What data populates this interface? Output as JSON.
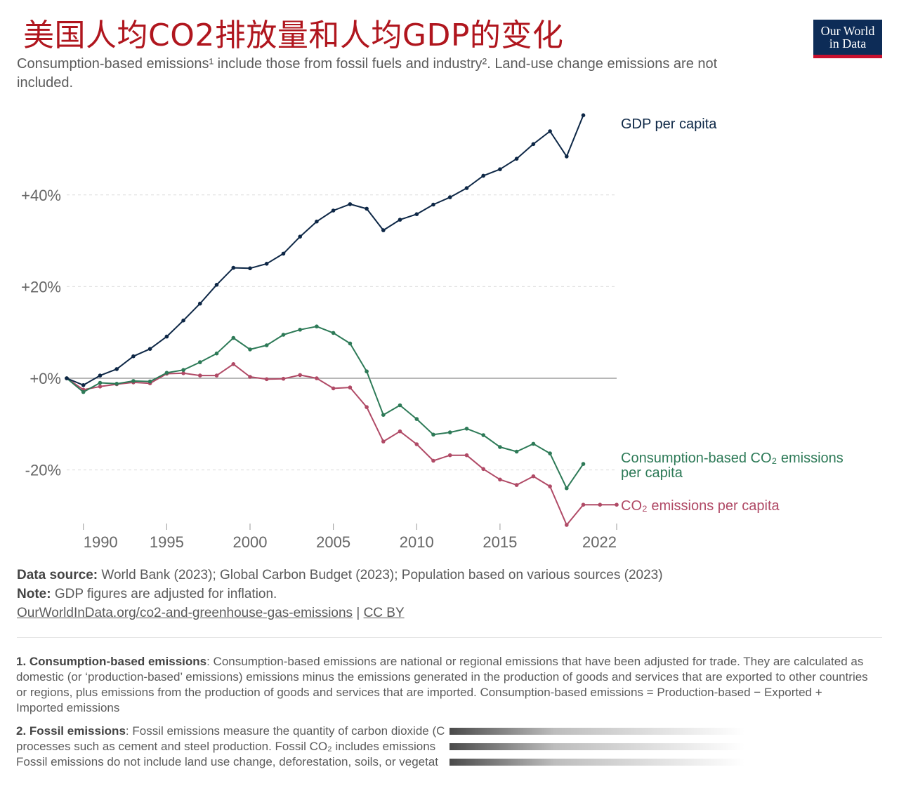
{
  "header": {
    "title": "美国人均CO2排放量和人均GDP的变化",
    "subtitle": "Consumption-based emissions¹ include those from fossil fuels and industry². Land-use change emissions are not included.",
    "logo_line1": "Our World",
    "logo_line2": "in Data"
  },
  "chart_data": {
    "type": "line",
    "x_ticks": [
      "1990",
      "1995",
      "2000",
      "2005",
      "2010",
      "2015",
      "2022"
    ],
    "y_ticks": [
      "+40%",
      "+20%",
      "+0%",
      "-20%"
    ],
    "ylim": [
      -33,
      58
    ],
    "xlim": [
      1989,
      2022
    ],
    "grid": true,
    "series": [
      {
        "name": "GDP per capita",
        "color": "#0d2746",
        "x": [
          1989,
          1990,
          1991,
          1992,
          1993,
          1994,
          1995,
          1996,
          1997,
          1998,
          1999,
          2000,
          2001,
          2002,
          2003,
          2004,
          2005,
          2006,
          2007,
          2008,
          2009,
          2010,
          2011,
          2012,
          2013,
          2014,
          2015,
          2016,
          2017,
          2018,
          2019,
          2020,
          2021
        ],
        "values": [
          0,
          -1.5,
          0.6,
          2.0,
          4.8,
          6.4,
          9.1,
          12.6,
          16.3,
          20.4,
          24.1,
          24.0,
          25.0,
          27.2,
          30.9,
          34.2,
          36.6,
          38.0,
          37.0,
          32.3,
          34.6,
          35.8,
          37.9,
          39.5,
          41.5,
          44.2,
          45.6,
          47.9,
          51.1,
          53.9,
          48.4,
          57.4,
          null
        ]
      },
      {
        "name": "Consumption-based CO₂ emissions per capita",
        "color": "#2d7a57",
        "x": [
          1989,
          1990,
          1991,
          1992,
          1993,
          1994,
          1995,
          1996,
          1997,
          1998,
          1999,
          2000,
          2001,
          2002,
          2003,
          2004,
          2005,
          2006,
          2007,
          2008,
          2009,
          2010,
          2011,
          2012,
          2013,
          2014,
          2015,
          2016,
          2017,
          2018,
          2019,
          2020,
          2021
        ],
        "values": [
          0,
          -3.0,
          -1.0,
          -1.2,
          -0.6,
          -0.7,
          1.2,
          1.8,
          3.5,
          5.4,
          8.8,
          6.3,
          7.2,
          9.5,
          10.6,
          11.3,
          9.9,
          7.6,
          1.5,
          -8.0,
          -5.9,
          -8.9,
          -12.3,
          -11.8,
          -11.0,
          -12.4,
          -15.0,
          -16.0,
          -14.3,
          -16.4,
          -24.0,
          -18.7,
          null
        ]
      },
      {
        "name": "CO₂ emissions per capita",
        "color": "#b04a66",
        "x": [
          1989,
          1990,
          1991,
          1992,
          1993,
          1994,
          1995,
          1996,
          1997,
          1998,
          1999,
          2000,
          2001,
          2002,
          2003,
          2004,
          2005,
          2006,
          2007,
          2008,
          2009,
          2010,
          2011,
          2012,
          2013,
          2014,
          2015,
          2016,
          2017,
          2018,
          2019,
          2020,
          2021,
          2022
        ],
        "values": [
          0,
          -2.5,
          -1.8,
          -1.3,
          -0.9,
          -1.1,
          1.0,
          1.1,
          0.6,
          0.6,
          3.1,
          0.3,
          -0.2,
          -0.1,
          0.7,
          0.0,
          -2.2,
          -2.0,
          -6.3,
          -13.8,
          -11.6,
          -14.4,
          -18.0,
          -16.8,
          -16.8,
          -19.8,
          -22.1,
          -23.3,
          -21.4,
          -23.6,
          -32.0,
          -27.6,
          -27.6,
          -27.6
        ]
      }
    ],
    "labels": {
      "gdp": "GDP per capita",
      "consumption_line1": "Consumption-based CO₂ emissions",
      "consumption_line2": "per capita",
      "co2": "CO₂ emissions per capita"
    }
  },
  "sources": {
    "data_source_label": "Data source:",
    "data_source_text": "World Bank (2023); Global Carbon Budget (2023); Population based on various sources (2023)",
    "note_label": "Note:",
    "note_text": "GDP figures are adjusted for inflation.",
    "link_text": "OurWorldInData.org/co2-and-greenhouse-gas-emissions",
    "separator": "|",
    "license_text": "CC BY"
  },
  "footnotes": {
    "fn1_label": "1. Consumption-based emissions",
    "fn1_text": ": Consumption-based emissions are national or regional emissions that have been adjusted for trade. They are calculated as domestic (or ‘production-based’ emissions) emissions minus the emissions generated in the production of goods and services that are exported to other countries or regions, plus emissions from the production of goods and services that are imported. Consumption-based emissions = Production-based − Exported + Imported emissions",
    "fn2_label": "2. Fossil emissions",
    "fn2_text_line1": ": Fossil emissions measure the quantity of carbon dioxide (C",
    "fn2_text_line2": "processes such as cement and steel production. Fossil CO₂ includes emissions",
    "fn2_text_line3": "Fossil emissions do not include land use change, deforestation, soils, or vegetat"
  }
}
